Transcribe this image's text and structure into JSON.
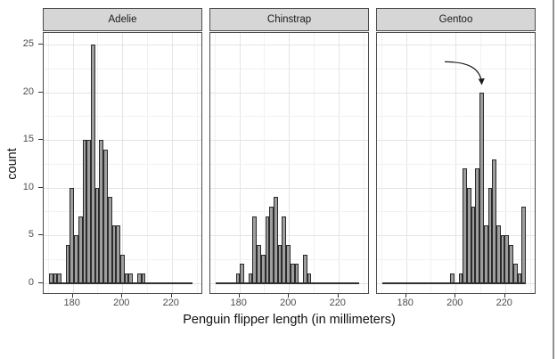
{
  "chart_data": {
    "type": "histogram",
    "title": "",
    "xlabel": "Penguin flipper length (in millimeters)",
    "ylabel": "count",
    "legend": "none",
    "grid": "on",
    "x_ticks": [
      180,
      200,
      220
    ],
    "x_minor_ticks": [
      170,
      190,
      210,
      230
    ],
    "y_ticks": [
      0,
      5,
      10,
      15,
      20,
      25
    ],
    "y_minor_ticks": [
      2.5,
      7.5,
      12.5,
      17.5,
      22.5
    ],
    "x_domain": [
      168.2,
      232.7
    ],
    "y_domain": [
      -1.25,
      26.25
    ],
    "bin_width_mm": 1.7,
    "zero_line_range_mm": [
      170.3,
      228.4
    ],
    "facets": [
      {
        "label": "Adelie",
        "bin_start_mm": 170.3,
        "counts": [
          1,
          1,
          1,
          0,
          4,
          10,
          5,
          7,
          15,
          15,
          25,
          10,
          15,
          14,
          9,
          6,
          6,
          3,
          1,
          1,
          0,
          1,
          1
        ]
      },
      {
        "label": "Chinstrap",
        "bin_start_mm": 178.5,
        "counts": [
          1,
          2,
          0,
          1,
          7,
          4,
          3,
          7,
          8,
          9,
          4,
          7,
          4,
          2,
          2,
          0,
          3,
          1
        ]
      },
      {
        "label": "Gentoo",
        "bin_start_mm": 197.8,
        "counts": [
          1,
          0,
          1,
          12,
          10,
          8,
          12,
          20,
          6,
          10,
          13,
          6,
          5,
          5,
          4,
          2,
          1,
          8
        ]
      }
    ],
    "annotation": {
      "facet": "Gentoo",
      "shape": "curved-arrow",
      "from_x_mm": 195.6,
      "from_count": 23.2,
      "to_x_mm": 210.55,
      "to_count": 20.6
    }
  },
  "colors": {
    "bar_fill": "#9e9e9e",
    "bar_stroke": "#2b2b2b",
    "strip_bg": "#d6d6d6",
    "strip_border": "#4b4b4b",
    "panel_border": "#4b4b4b",
    "grid_major": "#e4e4e4",
    "grid_minor": "#f1f1f1",
    "zero_line": "#303030",
    "tick_label": "#4d4d4d",
    "tick_mark": "#333333",
    "axis_title": "#0f0f0f",
    "strip_text": "#1a1a1a",
    "annotation_arrow": "#1a1a1a",
    "window_divider": "#919191"
  }
}
